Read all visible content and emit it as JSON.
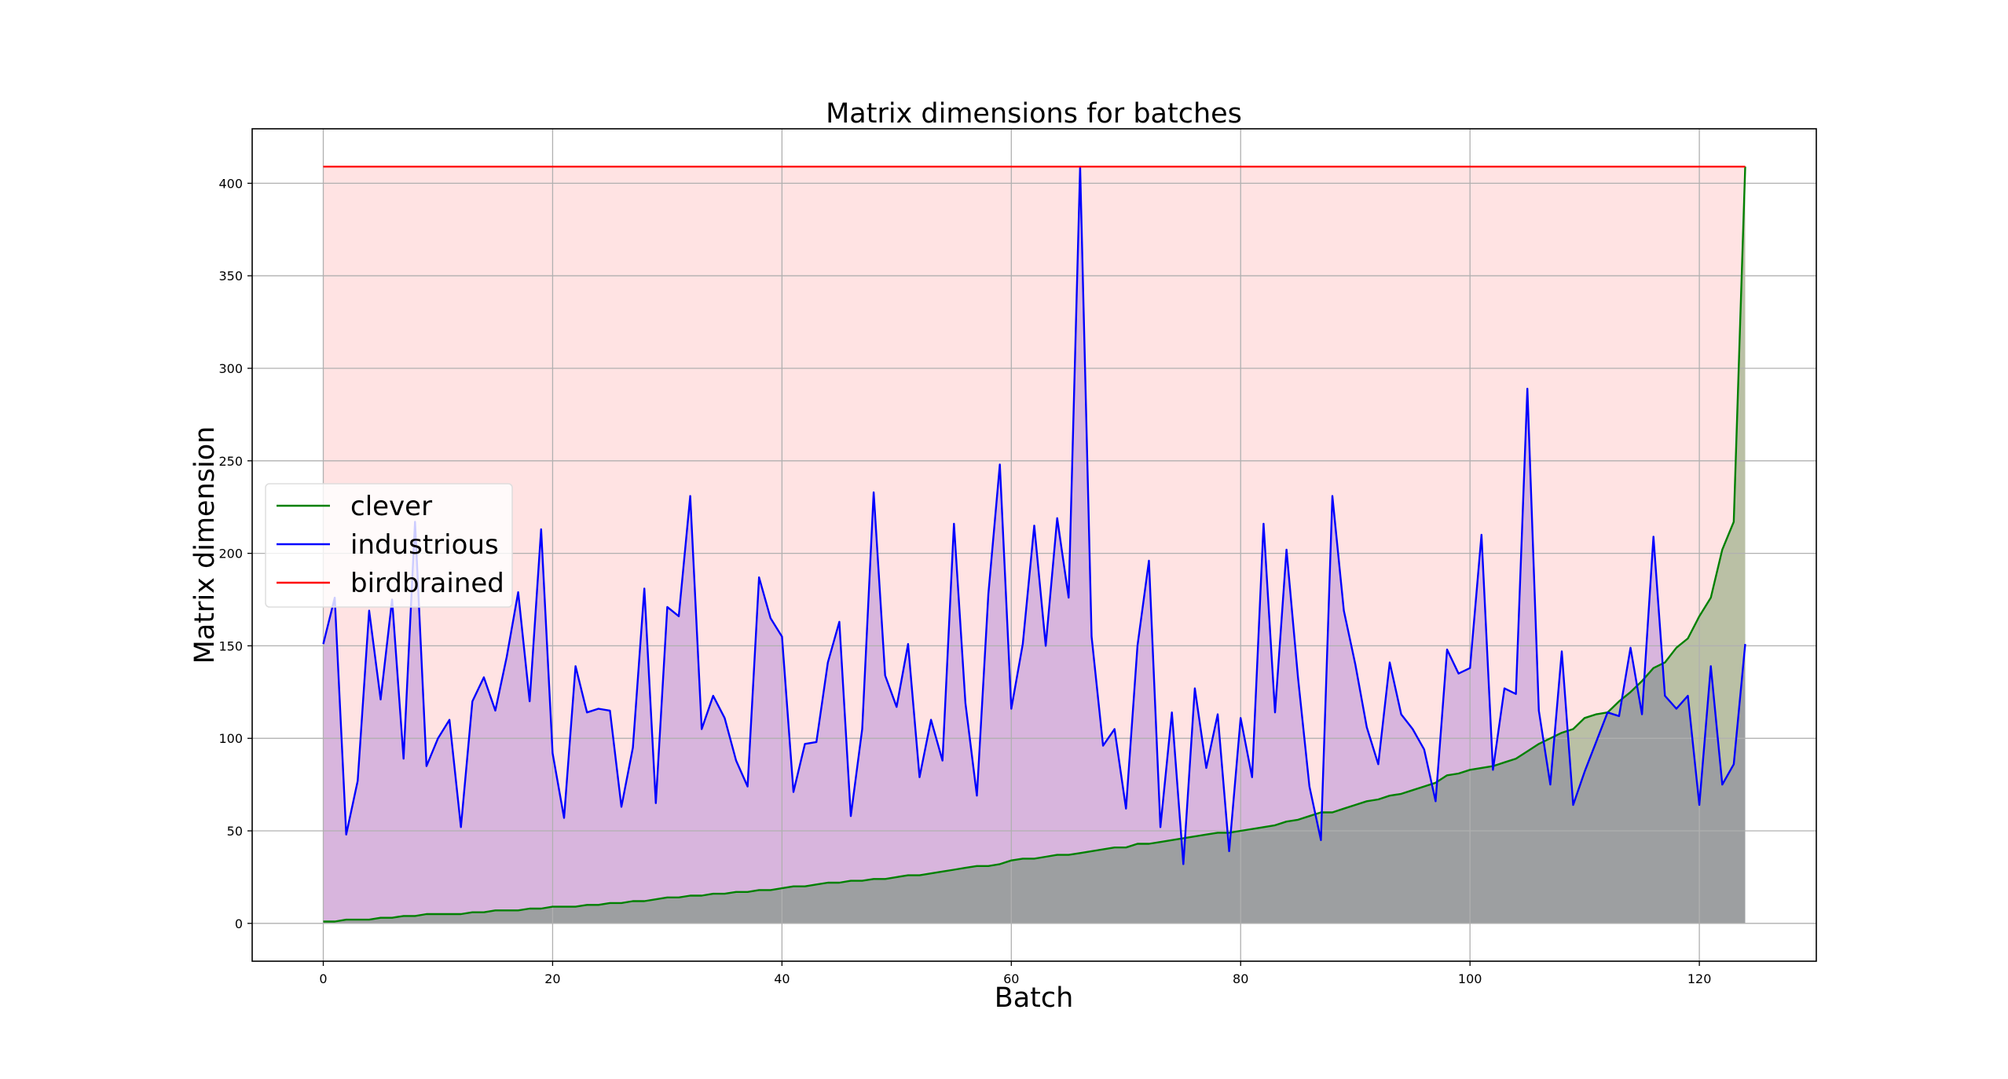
{
  "chart_data": {
    "type": "line",
    "title": "Matrix dimensions for batches",
    "xlabel": "Batch",
    "ylabel": "Matrix dimension",
    "xlim": [
      -6.2,
      130.2
    ],
    "ylim": [
      -20.45,
      429.45
    ],
    "xticks": [
      0,
      20,
      40,
      60,
      80,
      100,
      120
    ],
    "yticks": [
      0,
      50,
      100,
      150,
      200,
      250,
      300,
      350,
      400
    ],
    "grid": true,
    "legend_position": "center-left",
    "x_start": 0,
    "series": [
      {
        "name": "clever",
        "color": "#008000",
        "fill": "rgba(0,100,0,0.27)",
        "values": [
          1,
          1,
          2,
          2,
          2,
          3,
          3,
          4,
          4,
          5,
          5,
          5,
          5,
          6,
          6,
          7,
          7,
          7,
          8,
          8,
          9,
          9,
          9,
          10,
          10,
          11,
          11,
          12,
          12,
          13,
          14,
          14,
          15,
          15,
          16,
          16,
          17,
          17,
          18,
          18,
          19,
          20,
          20,
          21,
          22,
          22,
          23,
          23,
          24,
          24,
          25,
          26,
          26,
          27,
          28,
          29,
          30,
          31,
          31,
          32,
          34,
          35,
          35,
          36,
          37,
          37,
          38,
          39,
          40,
          41,
          41,
          43,
          43,
          44,
          45,
          46,
          47,
          48,
          49,
          49,
          50,
          51,
          52,
          53,
          55,
          56,
          58,
          60,
          60,
          62,
          64,
          66,
          67,
          69,
          70,
          72,
          74,
          76,
          80,
          81,
          83,
          84,
          85,
          87,
          89,
          93,
          97,
          100,
          103,
          105,
          111,
          113,
          114,
          120,
          125,
          131,
          138,
          141,
          149,
          154,
          166,
          176,
          202,
          217,
          409
        ]
      },
      {
        "name": "industrious",
        "color": "#0000ff",
        "fill": "rgba(60,0,200,0.2)",
        "values": [
          151,
          176,
          48,
          77,
          169,
          121,
          175,
          89,
          217,
          85,
          100,
          110,
          52,
          120,
          133,
          115,
          144,
          179,
          120,
          213,
          92,
          57,
          139,
          114,
          116,
          115,
          63,
          95,
          181,
          65,
          171,
          166,
          231,
          105,
          123,
          111,
          88,
          74,
          187,
          165,
          155,
          71,
          97,
          98,
          141,
          163,
          58,
          105,
          233,
          134,
          117,
          151,
          79,
          110,
          88,
          216,
          119,
          69,
          178,
          248,
          116,
          151,
          215,
          150,
          219,
          176,
          409,
          155,
          96,
          105,
          62,
          150,
          196,
          52,
          114,
          32,
          127,
          84,
          113,
          39,
          111,
          79,
          216,
          114,
          202,
          133,
          74,
          45,
          231,
          169,
          140,
          106,
          86,
          141,
          113,
          105,
          94,
          66,
          148,
          135,
          138,
          210,
          83,
          127,
          124,
          289,
          115,
          75,
          147,
          64,
          82,
          98,
          114,
          112,
          149,
          113,
          209,
          123,
          116,
          123,
          64,
          139,
          75,
          86,
          151
        ]
      },
      {
        "name": "birdbrained",
        "color": "#ff0000",
        "fill": "rgba(255,0,0,0.11)",
        "constant": 409,
        "count": 125
      }
    ]
  }
}
